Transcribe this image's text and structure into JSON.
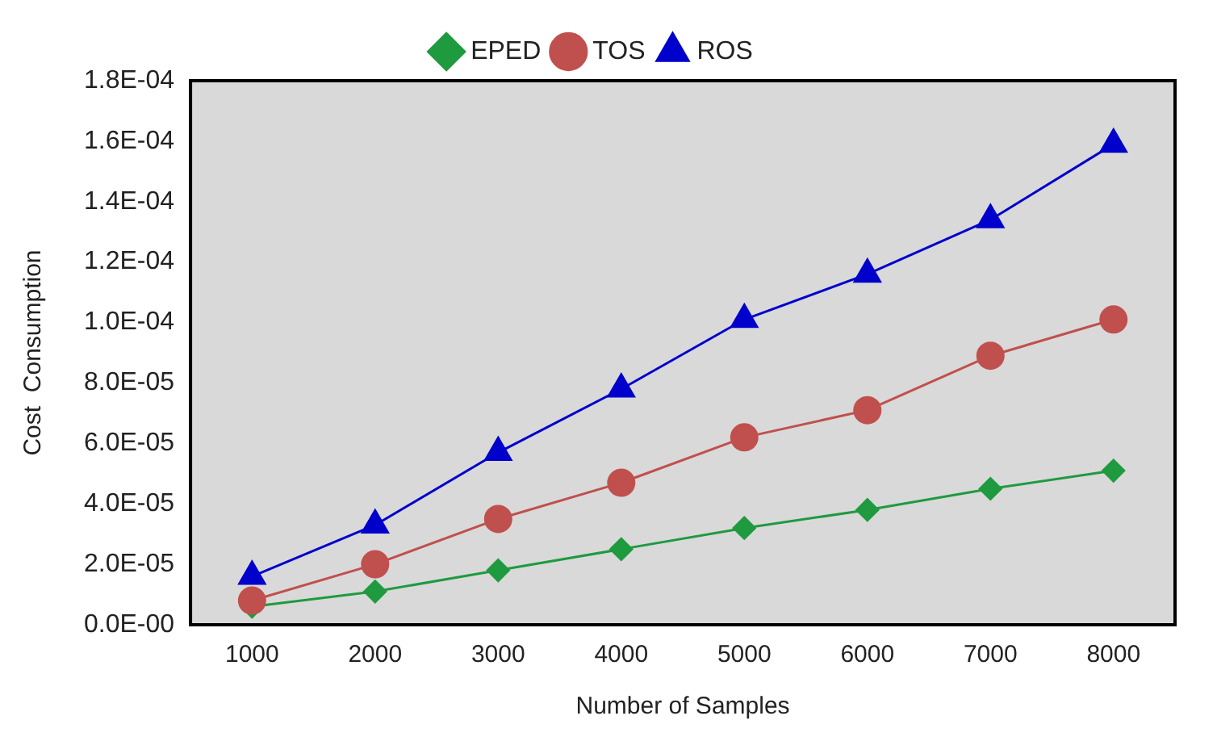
{
  "chart_data": {
    "type": "line",
    "xlabel": "Number of Samples",
    "ylabel": "Cost  Consumption",
    "categories": [
      "1000",
      "2000",
      "3000",
      "4000",
      "5000",
      "6000",
      "7000",
      "8000"
    ],
    "series": [
      {
        "name": "EPED",
        "color": "#1f9a3f",
        "marker": "diamond",
        "values": [
          6e-06,
          1.1e-05,
          1.8e-05,
          2.5e-05,
          3.2e-05,
          3.8e-05,
          4.5e-05,
          5.1e-05
        ]
      },
      {
        "name": "TOS",
        "color": "#c0504d",
        "marker": "circle",
        "values": [
          8e-06,
          2e-05,
          3.5e-05,
          4.7e-05,
          6.2e-05,
          7.1e-05,
          8.9e-05,
          0.000101
        ]
      },
      {
        "name": "ROS",
        "color": "#0000cc",
        "marker": "triangle",
        "values": [
          1.6e-05,
          3.3e-05,
          5.7e-05,
          7.8e-05,
          0.000101,
          0.000116,
          0.000134,
          0.000159
        ]
      }
    ],
    "ylim": [
      0,
      0.00018
    ],
    "yticks": [
      {
        "value": 0,
        "label": "0.0E-00"
      },
      {
        "value": 2e-05,
        "label": "2.0E-05"
      },
      {
        "value": 4e-05,
        "label": "4.0E-05"
      },
      {
        "value": 6e-05,
        "label": "6.0E-05"
      },
      {
        "value": 8e-05,
        "label": "8.0E-05"
      },
      {
        "value": 0.0001,
        "label": "1.0E-04"
      },
      {
        "value": 0.00012,
        "label": "1.2E-04"
      },
      {
        "value": 0.00014,
        "label": "1.4E-04"
      },
      {
        "value": 0.00016,
        "label": "1.6E-04"
      },
      {
        "value": 0.00018,
        "label": "1.8E-04"
      }
    ],
    "grid": false,
    "legend": "top",
    "line_style": "solid"
  }
}
